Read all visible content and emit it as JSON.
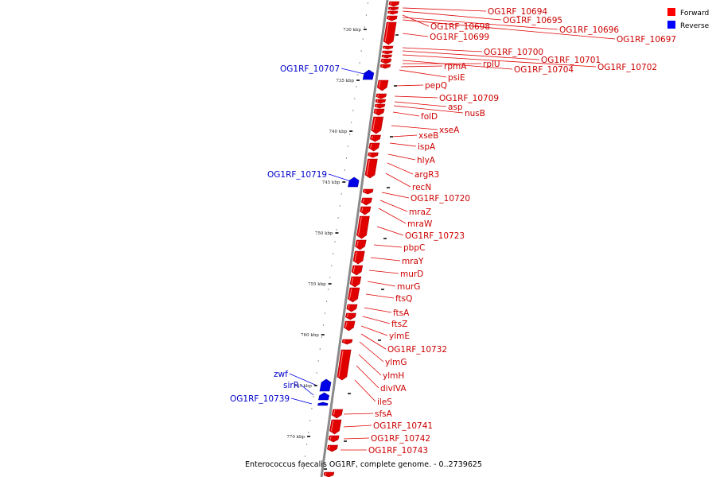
{
  "caption": "Enterococcus faecalis OG1RF, complete genome. - 0..2739625",
  "legend": [
    {
      "label": "Forward",
      "color": "#ff0000"
    },
    {
      "label": "Reverse",
      "color": "#0000ff"
    }
  ],
  "colors": {
    "forward": "#e00000",
    "reverse": "#0000e6",
    "forward_label": "#cc0000",
    "reverse_label": "#0000cc",
    "backbone": "#888888"
  },
  "ticks": [
    "730 kbp",
    "735 kbp",
    "740 kbp",
    "745 kbp",
    "750 kbp",
    "755 kbp",
    "760 kbp",
    "765 kbp",
    "770 kbp"
  ],
  "forward_genes": [
    "OG1RF_10694",
    "OG1RF_10695",
    "OG1RF_10698",
    "OG1RF_10696",
    "OG1RF_10699",
    "OG1RF_10697",
    "OG1RF_10700",
    "OG1RF_10701",
    "OG1RF_10702",
    "OG1RF_10704",
    "rplU",
    "rpmA",
    "psiE",
    "pepQ",
    "OG1RF_10709",
    "asp",
    "nusB",
    "folD",
    "xseA",
    "xseB",
    "ispA",
    "hlyA",
    "argR3",
    "recN",
    "OG1RF_10720",
    "mraZ",
    "mraW",
    "OG1RF_10723",
    "pbpC",
    "mraY",
    "murD",
    "murG",
    "ftsQ",
    "ftsA",
    "ftsZ",
    "ylmE",
    "OG1RF_10732",
    "ylmG",
    "ylmH",
    "divIVA",
    "ileS",
    "sfsA",
    "OG1RF_10741",
    "OG1RF_10742",
    "OG1RF_10743"
  ],
  "reverse_genes": [
    "OG1RF_10707",
    "OG1RF_10719",
    "zwf",
    "sirR",
    "OG1RF_10739"
  ]
}
